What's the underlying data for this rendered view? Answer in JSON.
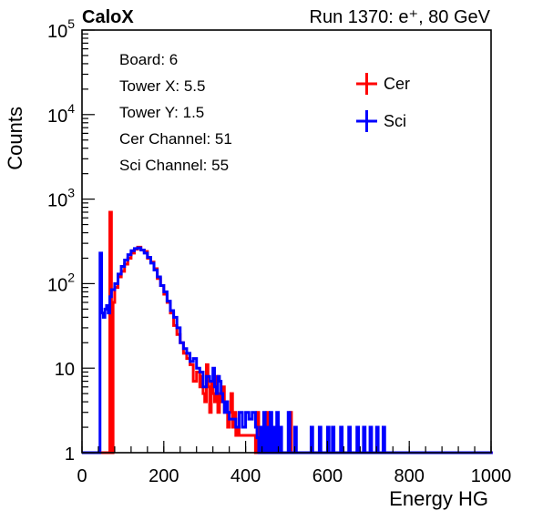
{
  "header": {
    "left": "CaloX",
    "right": "Run 1370: e⁺, 80 GeV"
  },
  "info": [
    "Board: 6",
    "Tower X: 5.5",
    "Tower Y: 1.5",
    "Cer Channel: 51",
    "Sci Channel: 55"
  ],
  "colors": {
    "cer": "#ff0000",
    "sci": "#0000ff"
  },
  "chart_data": {
    "type": "line",
    "subtype": "step histogram",
    "xlabel": "Energy HG",
    "ylabel": "Counts",
    "xlim": [
      0,
      1000
    ],
    "ylim": [
      1,
      100000
    ],
    "yscale": "log",
    "grid": false,
    "legend_position": "top-right",
    "x_ticks": [
      "0",
      "200",
      "400",
      "600",
      "800",
      "1000"
    ],
    "y_ticks": [
      {
        "base": "1",
        "exp": ""
      },
      {
        "base": "10",
        "exp": ""
      },
      {
        "base": "10",
        "exp": "2"
      },
      {
        "base": "10",
        "exp": "3"
      },
      {
        "base": "10",
        "exp": "4"
      },
      {
        "base": "10",
        "exp": "5"
      }
    ],
    "bin_width": 4,
    "series": [
      {
        "name": "Cer",
        "color": "#ff0000",
        "points": [
          [
            0,
            1
          ],
          [
            60,
            1
          ],
          [
            68,
            700
          ],
          [
            72,
            1
          ],
          [
            76,
            60
          ],
          [
            80,
            90
          ],
          [
            88,
            120
          ],
          [
            96,
            140
          ],
          [
            104,
            170
          ],
          [
            112,
            200
          ],
          [
            120,
            230
          ],
          [
            128,
            255
          ],
          [
            136,
            270
          ],
          [
            144,
            250
          ],
          [
            152,
            240
          ],
          [
            160,
            200
          ],
          [
            168,
            180
          ],
          [
            176,
            150
          ],
          [
            184,
            115
          ],
          [
            192,
            95
          ],
          [
            200,
            75
          ],
          [
            208,
            60
          ],
          [
            216,
            45
          ],
          [
            224,
            32
          ],
          [
            232,
            25
          ],
          [
            240,
            20
          ],
          [
            248,
            15
          ],
          [
            256,
            13
          ],
          [
            264,
            11
          ],
          [
            272,
            7
          ],
          [
            280,
            9
          ],
          [
            288,
            6
          ],
          [
            292,
            8
          ],
          [
            296,
            5
          ],
          [
            300,
            4
          ],
          [
            304,
            11
          ],
          [
            308,
            6
          ],
          [
            312,
            3
          ],
          [
            316,
            7
          ],
          [
            320,
            5
          ],
          [
            324,
            4
          ],
          [
            328,
            8
          ],
          [
            332,
            3
          ],
          [
            336,
            5
          ],
          [
            340,
            4
          ],
          [
            344,
            6
          ],
          [
            348,
            3
          ],
          [
            352,
            4
          ],
          [
            356,
            2
          ],
          [
            360,
            3
          ],
          [
            364,
            5
          ],
          [
            368,
            2
          ],
          [
            372,
            3
          ],
          [
            376,
            1.6
          ],
          [
            380,
            2
          ],
          [
            384,
            1.6
          ],
          [
            392,
            1.6
          ],
          [
            400,
            1.6
          ],
          [
            408,
            1.6
          ],
          [
            416,
            1.6
          ],
          [
            424,
            1
          ],
          [
            428,
            3
          ],
          [
            432,
            1
          ],
          [
            448,
            1
          ],
          [
            452,
            3
          ],
          [
            456,
            1
          ],
          [
            504,
            1
          ],
          [
            508,
            3
          ],
          [
            512,
            1
          ],
          [
            1000,
            1
          ]
        ]
      },
      {
        "name": "Sci",
        "color": "#0000ff",
        "points": [
          [
            0,
            1
          ],
          [
            40,
            1
          ],
          [
            44,
            230
          ],
          [
            48,
            45
          ],
          [
            52,
            40
          ],
          [
            56,
            50
          ],
          [
            60,
            55
          ],
          [
            64,
            45
          ],
          [
            68,
            70
          ],
          [
            72,
            85
          ],
          [
            80,
            100
          ],
          [
            88,
            130
          ],
          [
            96,
            160
          ],
          [
            104,
            190
          ],
          [
            112,
            220
          ],
          [
            120,
            245
          ],
          [
            128,
            260
          ],
          [
            136,
            265
          ],
          [
            144,
            250
          ],
          [
            152,
            230
          ],
          [
            160,
            205
          ],
          [
            168,
            175
          ],
          [
            176,
            145
          ],
          [
            184,
            120
          ],
          [
            192,
            95
          ],
          [
            200,
            80
          ],
          [
            208,
            62
          ],
          [
            216,
            48
          ],
          [
            224,
            40
          ],
          [
            232,
            30
          ],
          [
            240,
            20
          ],
          [
            248,
            17
          ],
          [
            256,
            15
          ],
          [
            264,
            12
          ],
          [
            272,
            13
          ],
          [
            280,
            10
          ],
          [
            288,
            9
          ],
          [
            296,
            6
          ],
          [
            304,
            8
          ],
          [
            312,
            7
          ],
          [
            320,
            10
          ],
          [
            324,
            6
          ],
          [
            328,
            5
          ],
          [
            332,
            8
          ],
          [
            336,
            7
          ],
          [
            340,
            5
          ],
          [
            344,
            4
          ],
          [
            348,
            3
          ],
          [
            352,
            4
          ],
          [
            356,
            3
          ],
          [
            360,
            2.5
          ],
          [
            368,
            2.5
          ],
          [
            376,
            2
          ],
          [
            384,
            3
          ],
          [
            392,
            2
          ],
          [
            400,
            3
          ],
          [
            408,
            2.5
          ],
          [
            416,
            3
          ],
          [
            424,
            2
          ],
          [
            428,
            1.5
          ],
          [
            432,
            1
          ],
          [
            436,
            2
          ],
          [
            440,
            1
          ],
          [
            444,
            3
          ],
          [
            448,
            1
          ],
          [
            452,
            2
          ],
          [
            456,
            1
          ],
          [
            460,
            3
          ],
          [
            464,
            1
          ],
          [
            468,
            2
          ],
          [
            472,
            1
          ],
          [
            476,
            3
          ],
          [
            480,
            1
          ],
          [
            484,
            2
          ],
          [
            488,
            1
          ],
          [
            500,
            1
          ],
          [
            504,
            3
          ],
          [
            508,
            1
          ],
          [
            516,
            1
          ],
          [
            520,
            2
          ],
          [
            524,
            1
          ],
          [
            556,
            1
          ],
          [
            560,
            2
          ],
          [
            564,
            1
          ],
          [
            576,
            1
          ],
          [
            580,
            2
          ],
          [
            584,
            1
          ],
          [
            596,
            1
          ],
          [
            600,
            2
          ],
          [
            604,
            1
          ],
          [
            608,
            1
          ],
          [
            612,
            2
          ],
          [
            616,
            1
          ],
          [
            628,
            1
          ],
          [
            632,
            2
          ],
          [
            636,
            1
          ],
          [
            648,
            1
          ],
          [
            652,
            2
          ],
          [
            656,
            1
          ],
          [
            668,
            1
          ],
          [
            672,
            2
          ],
          [
            676,
            1
          ],
          [
            684,
            1
          ],
          [
            688,
            2
          ],
          [
            692,
            1
          ],
          [
            700,
            1
          ],
          [
            704,
            2
          ],
          [
            708,
            1
          ],
          [
            716,
            1
          ],
          [
            720,
            2
          ],
          [
            724,
            1
          ],
          [
            732,
            1
          ],
          [
            736,
            2
          ],
          [
            740,
            1
          ],
          [
            1000,
            1
          ]
        ]
      }
    ]
  }
}
